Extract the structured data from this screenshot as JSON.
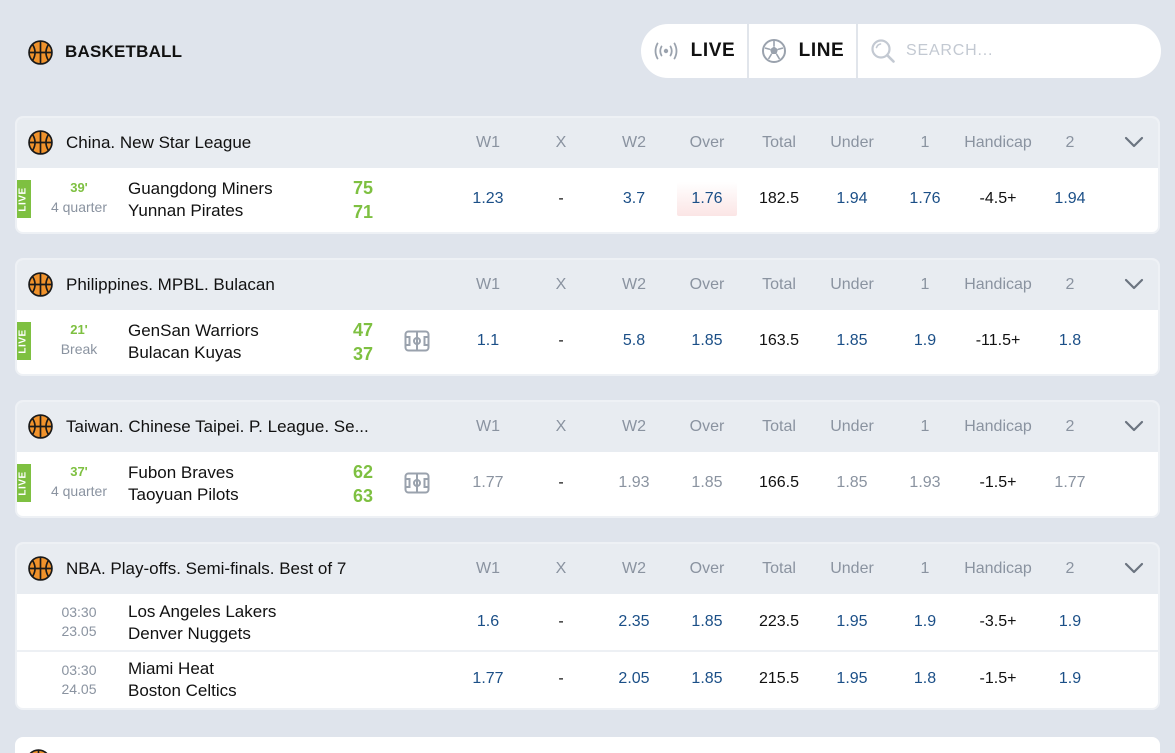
{
  "header": {
    "sport_title": "BASKETBALL",
    "sport_icon": "basketball-icon",
    "live_label": "LIVE",
    "live_icon": "broadcast-icon",
    "line_label": "LINE",
    "line_icon": "soccer-ball-icon",
    "search_placeholder": "SEARCH..."
  },
  "columns": [
    "W1",
    "X",
    "W2",
    "Over",
    "Total",
    "Under",
    "1",
    "Handicap",
    "2"
  ],
  "leagues": [
    {
      "name": "China. New Star League",
      "matches": [
        {
          "live": true,
          "live_label": "LIVE",
          "minute": "39'",
          "period": "4 quarter",
          "team1": "Guangdong Miners",
          "team2": "Yunnan Pirates",
          "score1": "75",
          "score2": "71",
          "odds": [
            "1.23",
            "-",
            "3.7",
            "1.76",
            "182.5",
            "1.94",
            "1.76",
            "-4.5+",
            "1.94"
          ]
        }
      ]
    },
    {
      "name": "Philippines. MPBL. Bulacan",
      "matches": [
        {
          "live": true,
          "live_label": "LIVE",
          "minute": "21'",
          "period": "Break",
          "team1": "GenSan Warriors",
          "team2": "Bulacan Kuyas",
          "score1": "47",
          "score2": "37",
          "odds": [
            "1.1",
            "-",
            "5.8",
            "1.85",
            "163.5",
            "1.85",
            "1.9",
            "-11.5+",
            "1.8"
          ]
        }
      ]
    },
    {
      "name": "Taiwan. Chinese Taipei. P. League. Se...",
      "matches": [
        {
          "live": true,
          "live_label": "LIVE",
          "minute": "37'",
          "period": "4 quarter",
          "team1": "Fubon Braves",
          "team2": "Taoyuan Pilots",
          "score1": "62",
          "score2": "63",
          "odds": [
            "1.77",
            "-",
            "1.93",
            "1.85",
            "166.5",
            "1.85",
            "1.93",
            "-1.5+",
            "1.77"
          ]
        }
      ]
    },
    {
      "name": "NBA. Play-offs. Semi-finals. Best of 7",
      "matches": [
        {
          "live": false,
          "time": "03:30",
          "date": "23.05",
          "team1": "Los Angeles Lakers",
          "team2": "Denver Nuggets",
          "odds": [
            "1.6",
            "-",
            "2.35",
            "1.85",
            "223.5",
            "1.95",
            "1.9",
            "-3.5+",
            "1.9"
          ]
        },
        {
          "live": false,
          "time": "03:30",
          "date": "24.05",
          "team1": "Miami Heat",
          "team2": "Boston Celtics",
          "odds": [
            "1.77",
            "-",
            "2.05",
            "1.85",
            "215.5",
            "1.95",
            "1.8",
            "-1.5+",
            "1.9"
          ]
        }
      ]
    }
  ],
  "colors": {
    "accent_green": "#7ec041",
    "odds_blue": "#1b4f87",
    "muted": "#8a93a0",
    "background": "#dfe4ec"
  }
}
